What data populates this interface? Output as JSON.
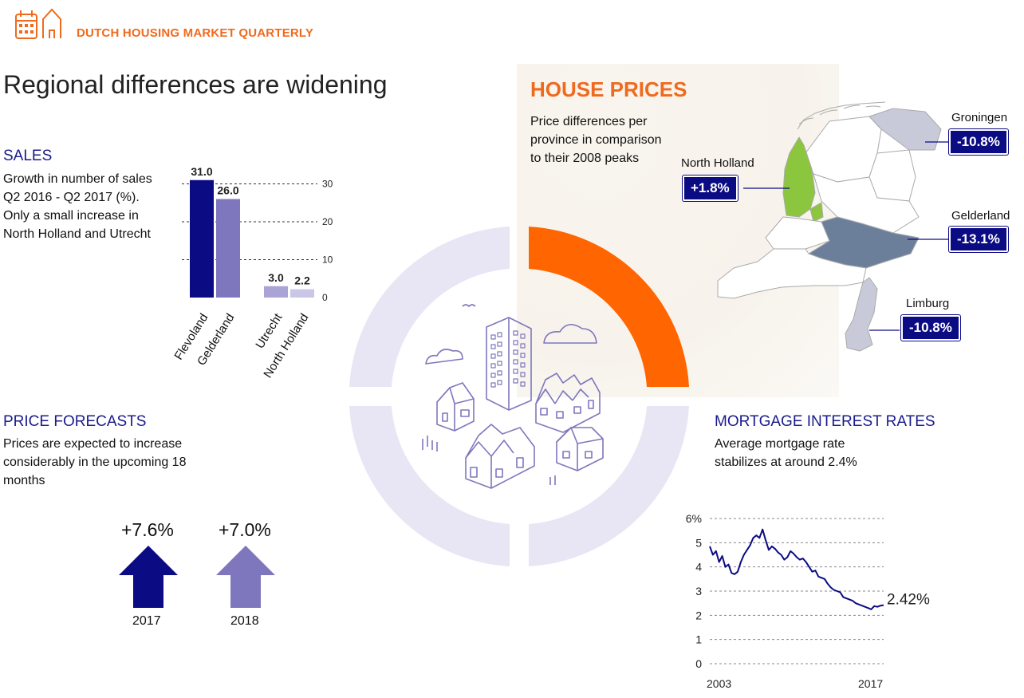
{
  "header": {
    "brand": "DUTCH HOUSING MARKET QUARTERLY",
    "logo_icon": "calendar-house-icon"
  },
  "headline": "Regional differences are widening",
  "sales": {
    "title": "SALES",
    "description": "Growth in number of sales Q2 2016 - Q2 2017 (%). Only a small increase in North Holland and Utrecht"
  },
  "price_forecasts": {
    "title": "PRICE FORECASTS",
    "description": "Prices are expected to increase considerably in the upcoming 18 months",
    "items": [
      {
        "value": "+7.6%",
        "year": "2017",
        "color": "#0b0b84",
        "icon": "arrow-up-icon"
      },
      {
        "value": "+7.0%",
        "year": "2018",
        "color": "#7f77bd",
        "icon": "arrow-up-icon"
      }
    ]
  },
  "house_prices": {
    "title": "HOUSE PRICES",
    "description": "Price differences per province in comparison to their 2008 peaks",
    "provinces": [
      {
        "name": "Groningen",
        "change": "-10.8%"
      },
      {
        "name": "North Holland",
        "change": "+1.8%"
      },
      {
        "name": "Gelderland",
        "change": "-13.1%"
      },
      {
        "name": "Limburg",
        "change": "-10.8%"
      }
    ],
    "colors": {
      "north_holland": "#8cc63f",
      "gelderland": "#6c7f9a",
      "other_highlight": "#c9cad9",
      "base": "#ffffff"
    }
  },
  "mortgage": {
    "title": "MORTGAGE INTEREST RATES",
    "description": "Average mortgage rate stabilizes at around 2.4%",
    "end_label": "2.42%"
  },
  "colors": {
    "accent_orange": "#f06a1d",
    "navy": "#0b0b84",
    "lavender": "#7f77bd",
    "ring": "#e8e6f4"
  },
  "chart_data": [
    {
      "type": "bar",
      "categories": [
        "Flevoland",
        "Gelderland",
        "Utrecht",
        "North Holland"
      ],
      "values": [
        31.0,
        26.0,
        3.0,
        2.2
      ],
      "value_labels": [
        "31.0",
        "26.0",
        "3.0",
        "2.2"
      ],
      "colors": [
        "#0b0b84",
        "#7f77bd",
        "#a9a3d6",
        "#cac6e8"
      ],
      "yticks": [
        "0",
        "10",
        "20",
        "30"
      ],
      "ylim": [
        0,
        32
      ],
      "grid": true
    },
    {
      "type": "line",
      "x": [
        2003,
        2003.25,
        2003.5,
        2003.75,
        2004,
        2004.25,
        2004.5,
        2004.75,
        2005,
        2005.25,
        2005.5,
        2005.75,
        2006,
        2006.25,
        2006.5,
        2006.75,
        2007,
        2007.25,
        2007.5,
        2007.75,
        2008,
        2008.25,
        2008.5,
        2008.75,
        2009,
        2009.25,
        2009.5,
        2009.75,
        2010,
        2010.25,
        2010.5,
        2010.75,
        2011,
        2011.25,
        2011.5,
        2011.75,
        2012,
        2012.25,
        2012.5,
        2012.75,
        2013,
        2013.25,
        2013.5,
        2013.75,
        2014,
        2014.25,
        2014.5,
        2014.75,
        2015,
        2015.25,
        2015.5,
        2015.75,
        2016,
        2016.25,
        2016.5,
        2016.75,
        2017
      ],
      "y": [
        4.85,
        4.5,
        4.65,
        4.2,
        4.45,
        4.0,
        4.1,
        3.75,
        3.7,
        3.8,
        4.2,
        4.5,
        4.7,
        4.9,
        5.2,
        5.3,
        5.2,
        5.55,
        5.1,
        4.7,
        4.85,
        4.75,
        4.6,
        4.5,
        4.3,
        4.4,
        4.65,
        4.55,
        4.4,
        4.3,
        4.35,
        4.2,
        4.0,
        3.8,
        3.85,
        3.6,
        3.55,
        3.5,
        3.3,
        3.15,
        3.05,
        3.0,
        2.95,
        2.75,
        2.7,
        2.65,
        2.6,
        2.5,
        2.45,
        2.4,
        2.35,
        2.3,
        2.25,
        2.38,
        2.35,
        2.4,
        2.42
      ],
      "xtick_labels": [
        "2003",
        "2017"
      ],
      "yticks": [
        "6%",
        "5",
        "4",
        "3",
        "2",
        "1",
        "0"
      ],
      "ylim": [
        0,
        6
      ],
      "xlim": [
        2003,
        2017
      ],
      "grid": true,
      "color": "#0b0b84"
    }
  ]
}
